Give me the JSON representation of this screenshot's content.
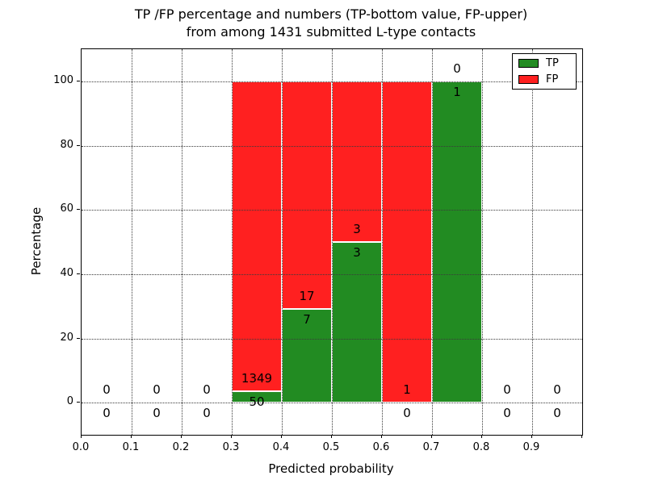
{
  "title_line1": "TP /FP percentage and numbers (TP-bottom value, FP-upper)",
  "title_line2": "from among 1431 submitted L-type contacts",
  "chart_data": {
    "type": "bar",
    "stacked": true,
    "title": "TP /FP percentage and numbers (TP-bottom value, FP-upper) from among 1431 submitted L-type contacts",
    "xlabel": "Predicted probability",
    "ylabel": "Percentage",
    "xlim": [
      0.0,
      1.0
    ],
    "ylim": [
      -10,
      110
    ],
    "x_tick_values": [
      0.0,
      0.1,
      0.2,
      0.3,
      0.4,
      0.5,
      0.6,
      0.7,
      0.8,
      0.9
    ],
    "x_tick_labels": [
      "0.0",
      "0.1",
      "0.2",
      "0.3",
      "0.4",
      "0.5",
      "0.6",
      "0.7",
      "0.8",
      "0.9"
    ],
    "y_tick_values": [
      0,
      20,
      40,
      60,
      80,
      100
    ],
    "y_tick_labels": [
      "0",
      "20",
      "40",
      "60",
      "80",
      "100"
    ],
    "grid": true,
    "grid_style": "dotted",
    "colors": {
      "tp": "#228b22",
      "fp": "#ff2020",
      "text": "#000000",
      "background": "#ffffff"
    },
    "legend": {
      "position": "upper right",
      "entries": [
        {
          "label": "TP",
          "color": "#228b22"
        },
        {
          "label": "FP",
          "color": "#ff2020"
        }
      ]
    },
    "bins": [
      {
        "range": [
          0.0,
          0.1
        ],
        "tp_count": 0,
        "fp_count": 0,
        "tp_pct": 0,
        "fp_pct": 0
      },
      {
        "range": [
          0.1,
          0.2
        ],
        "tp_count": 0,
        "fp_count": 0,
        "tp_pct": 0,
        "fp_pct": 0
      },
      {
        "range": [
          0.2,
          0.3
        ],
        "tp_count": 0,
        "fp_count": 0,
        "tp_pct": 0,
        "fp_pct": 0
      },
      {
        "range": [
          0.3,
          0.4
        ],
        "tp_count": 50,
        "fp_count": 1349,
        "tp_pct": 3.57,
        "fp_pct": 96.43
      },
      {
        "range": [
          0.4,
          0.5
        ],
        "tp_count": 7,
        "fp_count": 17,
        "tp_pct": 29.17,
        "fp_pct": 70.83
      },
      {
        "range": [
          0.5,
          0.6
        ],
        "tp_count": 3,
        "fp_count": 3,
        "tp_pct": 50,
        "fp_pct": 50
      },
      {
        "range": [
          0.6,
          0.7
        ],
        "tp_count": 0,
        "fp_count": 1,
        "tp_pct": 0,
        "fp_pct": 100
      },
      {
        "range": [
          0.7,
          0.8
        ],
        "tp_count": 1,
        "fp_count": 0,
        "tp_pct": 100,
        "fp_pct": 0
      },
      {
        "range": [
          0.8,
          0.9
        ],
        "tp_count": 0,
        "fp_count": 0,
        "tp_pct": 0,
        "fp_pct": 0
      },
      {
        "range": [
          0.9,
          1.0
        ],
        "tp_count": 0,
        "fp_count": 0,
        "tp_pct": 0,
        "fp_pct": 0
      }
    ]
  }
}
